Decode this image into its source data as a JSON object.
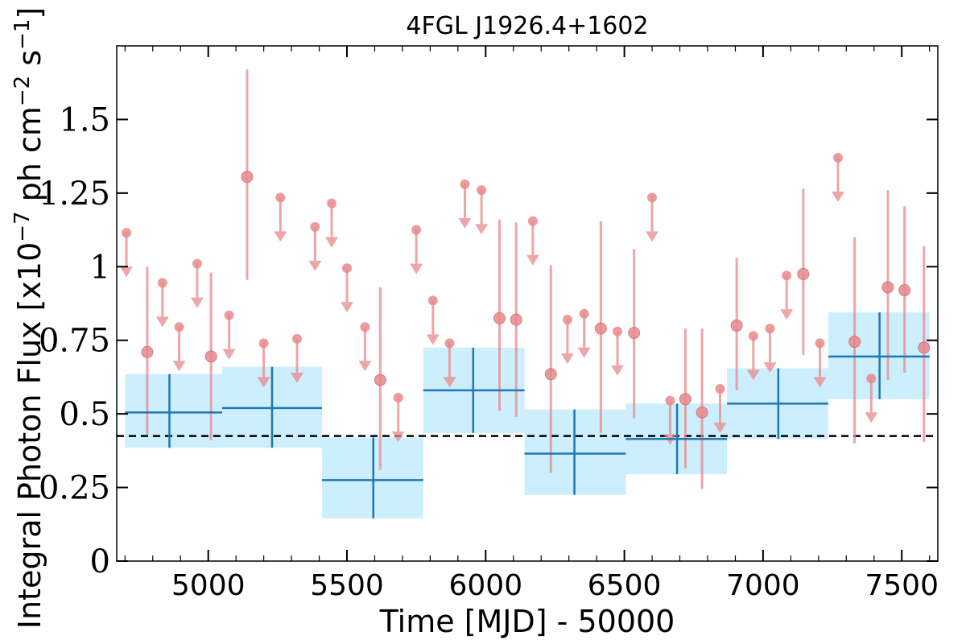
{
  "chart_data": {
    "type": "scatter",
    "title": "4FGL J1926.4+1602",
    "xlabel": "Time [MJD] - 50000",
    "ylabel_main": "Integral Photon Flux [x10",
    "ylabel_exp1": "−7",
    "ylabel_mid": " ph cm",
    "ylabel_exp2": "−2",
    "ylabel_mid2": " s",
    "ylabel_exp3": "−1",
    "ylabel_end": "]",
    "xlim": [
      4670,
      7630
    ],
    "ylim": [
      0,
      1.75
    ],
    "x_ticks": [
      5000,
      5500,
      6000,
      6500,
      7000,
      7500
    ],
    "x_tick_labels": [
      "5000",
      "5500",
      "6000",
      "6500",
      "7000",
      "7500"
    ],
    "y_ticks": [
      0,
      0.25,
      0.5,
      0.75,
      1,
      1.25,
      1.5
    ],
    "y_tick_labels": [
      "0",
      "0.25",
      "0.5",
      "0.75",
      "1",
      "1.25",
      "1.5"
    ],
    "grid": false,
    "average_flux": 0.425,
    "colors": {
      "monthly": "#e8898b",
      "binned_line": "#1f77b4",
      "binned_box": "#cdeefc",
      "average_line": "#000000"
    },
    "binned": [
      {
        "x0": 4700,
        "x1": 5050,
        "x": 4860,
        "y": 0.505,
        "y_lo": 0.385,
        "y_hi": 0.635
      },
      {
        "x0": 5050,
        "x1": 5410,
        "x": 5230,
        "y": 0.52,
        "y_lo": 0.385,
        "y_hi": 0.66
      },
      {
        "x0": 5410,
        "x1": 5775,
        "x": 5595,
        "y": 0.275,
        "y_lo": 0.145,
        "y_hi": 0.42
      },
      {
        "x0": 5775,
        "x1": 6140,
        "x": 5955,
        "y": 0.58,
        "y_lo": 0.435,
        "y_hi": 0.725
      },
      {
        "x0": 6140,
        "x1": 6505,
        "x": 6320,
        "y": 0.365,
        "y_lo": 0.225,
        "y_hi": 0.515
      },
      {
        "x0": 6505,
        "x1": 6870,
        "x": 6690,
        "y": 0.415,
        "y_lo": 0.295,
        "y_hi": 0.535
      },
      {
        "x0": 6870,
        "x1": 7235,
        "x": 7055,
        "y": 0.535,
        "y_lo": 0.415,
        "y_hi": 0.655
      },
      {
        "x0": 7235,
        "x1": 7600,
        "x": 7420,
        "y": 0.695,
        "y_lo": 0.55,
        "y_hi": 0.845
      }
    ],
    "monthly_points": [
      {
        "x": 4780,
        "y": 0.71,
        "y_lo": 0.43,
        "y_hi": 1.0
      },
      {
        "x": 5140,
        "y": 1.305,
        "y_lo": 0.955,
        "y_hi": 1.67
      },
      {
        "x": 5010,
        "y": 0.695,
        "y_lo": 0.41,
        "y_hi": 0.98
      },
      {
        "x": 5620,
        "y": 0.615,
        "y_lo": 0.31,
        "y_hi": 0.93
      },
      {
        "x": 6050,
        "y": 0.825,
        "y_lo": 0.51,
        "y_hi": 1.16
      },
      {
        "x": 6110,
        "y": 0.82,
        "y_lo": 0.49,
        "y_hi": 1.15
      },
      {
        "x": 6235,
        "y": 0.635,
        "y_lo": 0.3,
        "y_hi": 1.005
      },
      {
        "x": 6415,
        "y": 0.79,
        "y_lo": 0.435,
        "y_hi": 1.155
      },
      {
        "x": 6535,
        "y": 0.775,
        "y_lo": 0.485,
        "y_hi": 1.06
      },
      {
        "x": 6720,
        "y": 0.55,
        "y_lo": 0.315,
        "y_hi": 0.79
      },
      {
        "x": 6780,
        "y": 0.505,
        "y_lo": 0.245,
        "y_hi": 0.79
      },
      {
        "x": 6905,
        "y": 0.8,
        "y_lo": 0.58,
        "y_hi": 1.03
      },
      {
        "x": 7145,
        "y": 0.975,
        "y_lo": 0.7,
        "y_hi": 1.265
      },
      {
        "x": 7330,
        "y": 0.745,
        "y_lo": 0.4,
        "y_hi": 1.1
      },
      {
        "x": 7450,
        "y": 0.93,
        "y_lo": 0.615,
        "y_hi": 1.26
      },
      {
        "x": 7510,
        "y": 0.92,
        "y_lo": 0.64,
        "y_hi": 1.205
      },
      {
        "x": 7580,
        "y": 0.725,
        "y_lo": 0.405,
        "y_hi": 1.07
      }
    ],
    "upper_limits": [
      {
        "x": 4705,
        "y": 1.115
      },
      {
        "x": 4835,
        "y": 0.945
      },
      {
        "x": 4895,
        "y": 0.795
      },
      {
        "x": 4960,
        "y": 1.01
      },
      {
        "x": 5075,
        "y": 0.835
      },
      {
        "x": 5200,
        "y": 0.74
      },
      {
        "x": 5260,
        "y": 1.235
      },
      {
        "x": 5320,
        "y": 0.755
      },
      {
        "x": 5385,
        "y": 1.135
      },
      {
        "x": 5445,
        "y": 1.215
      },
      {
        "x": 5500,
        "y": 0.995
      },
      {
        "x": 5565,
        "y": 0.795
      },
      {
        "x": 5685,
        "y": 0.555
      },
      {
        "x": 5750,
        "y": 1.125
      },
      {
        "x": 5810,
        "y": 0.885
      },
      {
        "x": 5870,
        "y": 0.74
      },
      {
        "x": 5925,
        "y": 1.28
      },
      {
        "x": 5985,
        "y": 1.26
      },
      {
        "x": 6170,
        "y": 1.155
      },
      {
        "x": 6295,
        "y": 0.82
      },
      {
        "x": 6355,
        "y": 0.84
      },
      {
        "x": 6475,
        "y": 0.78
      },
      {
        "x": 6600,
        "y": 1.235
      },
      {
        "x": 6665,
        "y": 0.545
      },
      {
        "x": 6845,
        "y": 0.585
      },
      {
        "x": 6965,
        "y": 0.765
      },
      {
        "x": 7025,
        "y": 0.79
      },
      {
        "x": 7085,
        "y": 0.97
      },
      {
        "x": 7205,
        "y": 0.74
      },
      {
        "x": 7270,
        "y": 1.37
      },
      {
        "x": 7390,
        "y": 0.62
      }
    ]
  }
}
